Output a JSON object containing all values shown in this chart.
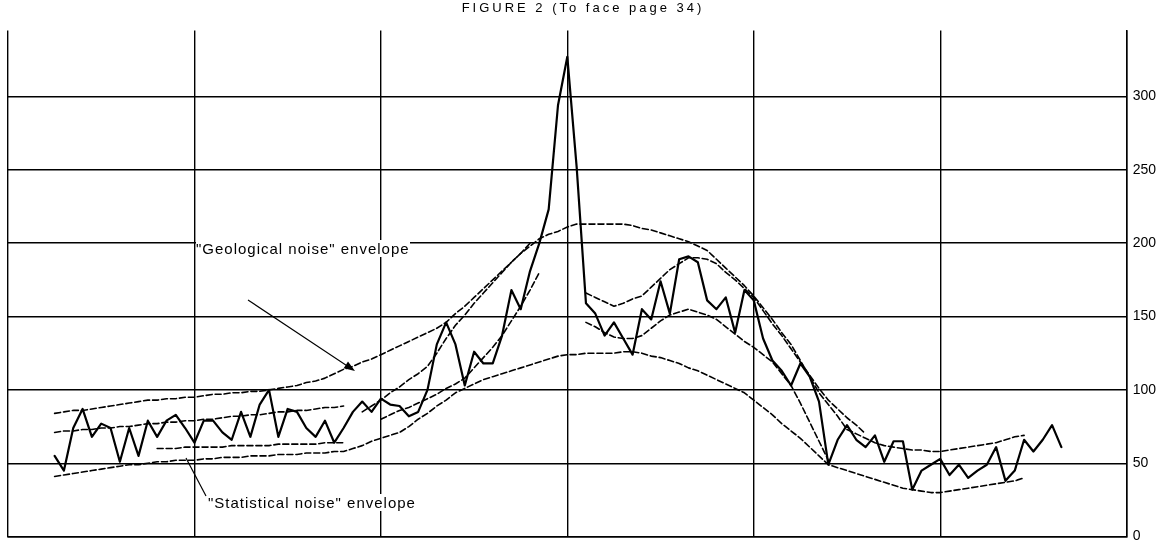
{
  "chart_data": {
    "type": "line",
    "title": "FIGURE 2 (To face page 34)",
    "annotations": [
      "\"Geological noise\" envelope",
      "\"Statistical noise\" envelope"
    ],
    "categories": [
      null,
      null,
      null,
      null,
      null,
      null,
      null,
      null,
      null,
      null,
      null,
      null,
      null,
      null,
      null,
      null,
      null,
      null,
      null,
      null,
      null,
      null,
      null,
      null,
      null,
      null,
      null,
      null,
      null,
      null,
      null,
      null,
      null,
      null,
      null,
      null,
      null,
      null,
      null,
      null,
      null,
      null,
      null,
      null,
      null,
      null,
      null,
      null,
      null,
      null,
      null,
      null,
      null,
      null,
      null,
      null,
      null,
      null,
      null,
      null,
      null,
      null,
      null,
      null,
      null,
      null,
      null,
      null,
      null,
      null,
      null,
      null,
      null,
      null,
      null,
      null,
      null,
      null,
      null,
      null,
      null,
      null,
      null,
      null,
      null,
      null,
      null,
      null,
      null,
      null,
      null,
      null,
      null,
      null,
      null,
      null,
      null,
      null,
      null,
      null,
      null,
      null,
      null,
      null,
      null,
      null,
      null,
      null,
      null,
      null,
      null,
      null,
      null,
      null,
      null,
      null,
      null,
      null,
      null,
      null,
      null
    ],
    "ylim": [
      0,
      345
    ],
    "yticks": [
      0,
      50,
      100,
      150,
      200,
      250,
      300
    ],
    "grid": true,
    "legend": false,
    "marker": "none",
    "tick_labels": "y",
    "series": [
      {
        "color": "#000000",
        "line_style": "solid",
        "values": [
          null,
          null,
          null,
          null,
          null,
          55,
          45,
          74,
          87,
          68,
          77,
          74,
          51,
          74,
          55,
          79,
          68,
          79,
          83,
          74,
          64,
          79,
          79,
          71,
          66,
          85,
          68,
          90,
          100,
          68,
          87,
          85,
          74,
          68,
          79,
          64,
          74,
          85,
          92,
          85,
          94,
          90,
          89,
          82,
          85,
          100,
          131,
          146,
          131,
          103,
          126,
          118,
          118,
          137,
          168,
          155,
          181,
          200,
          223,
          294,
          327,
          252,
          159,
          152,
          137,
          146,
          135,
          124,
          155,
          148,
          174,
          152,
          189,
          191,
          187,
          161,
          155,
          163,
          139,
          168,
          161,
          135,
          120,
          113,
          103,
          118,
          109,
          92,
          49,
          66,
          76,
          66,
          61,
          69,
          51,
          65,
          65,
          32,
          45,
          49,
          53,
          42,
          49,
          40,
          45,
          49,
          61,
          38,
          45,
          66,
          58,
          66,
          76,
          61,
          null,
          null,
          null,
          null,
          null,
          null,
          null
        ]
      },
      {
        "color": "#000000",
        "line_style": "dashed",
        "values": [
          null,
          null,
          null,
          null,
          null,
          84,
          85,
          86,
          86,
          87,
          88,
          89,
          90,
          91,
          92,
          93,
          93,
          94,
          94,
          95,
          95,
          96,
          97,
          97,
          98,
          98,
          99,
          99,
          100,
          101,
          102,
          103,
          105,
          106,
          108,
          111,
          114,
          116,
          119,
          121,
          124,
          127,
          130,
          133,
          136,
          139,
          142,
          146,
          152,
          157,
          163,
          169,
          175,
          181,
          187,
          193,
          198,
          203,
          206,
          208,
          211,
          213,
          213,
          213,
          213,
          213,
          213,
          212,
          210,
          209,
          207,
          205,
          203,
          201,
          198,
          195,
          189,
          183,
          177,
          171,
          164,
          156,
          148,
          139,
          131,
          120,
          109,
          98,
          90,
          82,
          73,
          70,
          67,
          64,
          62,
          61,
          60,
          59,
          59,
          58,
          58,
          59,
          60,
          61,
          62,
          63,
          64,
          66,
          68,
          69,
          null,
          null,
          null,
          null,
          null,
          null,
          null,
          null,
          null,
          null,
          null
        ]
      },
      {
        "color": "#000000",
        "line_style": "dashed",
        "values": [
          null,
          null,
          null,
          null,
          null,
          41,
          42,
          43,
          44,
          45,
          46,
          47,
          48,
          49,
          49,
          50,
          51,
          51,
          52,
          52,
          52,
          53,
          53,
          54,
          54,
          54,
          55,
          55,
          55,
          56,
          56,
          56,
          57,
          57,
          57,
          58,
          58,
          60,
          62,
          65,
          67,
          69,
          71,
          75,
          80,
          84,
          89,
          93,
          98,
          101,
          104,
          107,
          109,
          111,
          113,
          115,
          117,
          119,
          121,
          123,
          124,
          124,
          125,
          125,
          125,
          125,
          126,
          126,
          125,
          123,
          122,
          120,
          118,
          115,
          113,
          110,
          107,
          104,
          101,
          98,
          93,
          88,
          83,
          77,
          72,
          67,
          61,
          55,
          49,
          47,
          45,
          43,
          41,
          39,
          37,
          35,
          33,
          32,
          31,
          30,
          30,
          31,
          32,
          33,
          34,
          35,
          36,
          37,
          38,
          40,
          null,
          null,
          null,
          null,
          null,
          null,
          null,
          null,
          null,
          null,
          null
        ]
      },
      {
        "color": "#000000",
        "line_style": "dashed",
        "values": [
          null,
          null,
          null,
          null,
          null,
          71,
          72,
          72,
          73,
          73,
          74,
          74,
          75,
          75,
          76,
          77,
          77,
          78,
          78,
          79,
          79,
          80,
          80,
          81,
          82,
          82,
          83,
          83,
          84,
          85,
          85,
          86,
          86,
          87,
          88,
          88,
          89,
          null,
          null,
          null,
          null,
          null,
          null,
          null,
          null,
          null,
          null,
          null,
          null,
          null,
          null,
          null,
          null,
          null,
          null,
          null,
          null,
          null,
          null,
          null,
          null,
          null,
          null,
          null,
          null,
          null,
          null,
          null,
          null,
          null,
          null,
          null,
          null,
          null,
          null,
          null,
          null,
          null,
          null,
          null,
          null,
          null,
          null,
          null,
          null,
          null,
          null,
          null,
          null,
          null,
          null,
          null,
          null,
          null,
          null,
          null,
          null,
          null,
          null,
          null,
          null,
          null,
          null,
          null,
          null,
          null,
          null,
          null,
          null,
          null,
          null,
          null,
          null,
          null,
          null,
          null,
          null,
          null,
          null,
          null,
          null
        ]
      },
      {
        "color": "#000000",
        "line_style": "dashed",
        "values": [
          null,
          null,
          null,
          null,
          null,
          null,
          null,
          null,
          null,
          null,
          null,
          null,
          null,
          null,
          null,
          null,
          60,
          60,
          60,
          61,
          61,
          61,
          61,
          61,
          62,
          62,
          62,
          62,
          62,
          63,
          63,
          63,
          63,
          63,
          64,
          64,
          64,
          null,
          null,
          null,
          null,
          null,
          null,
          null,
          null,
          null,
          null,
          null,
          null,
          null,
          null,
          null,
          null,
          null,
          null,
          null,
          null,
          null,
          null,
          null,
          null,
          null,
          null,
          null,
          null,
          null,
          null,
          null,
          null,
          null,
          null,
          null,
          null,
          null,
          null,
          null,
          null,
          null,
          null,
          null,
          null,
          null,
          null,
          null,
          null,
          null,
          null,
          null,
          null,
          null,
          null,
          null,
          null,
          null,
          null,
          null,
          null,
          null,
          null,
          null,
          null,
          null,
          null,
          null,
          null,
          null,
          null,
          null,
          null,
          null,
          null,
          null,
          null,
          null,
          null,
          null,
          null,
          null,
          null,
          null,
          null
        ]
      },
      {
        "color": "#000000",
        "line_style": "dashed",
        "values": [
          null,
          null,
          null,
          null,
          null,
          null,
          null,
          null,
          null,
          null,
          null,
          null,
          null,
          null,
          null,
          null,
          null,
          null,
          null,
          null,
          null,
          null,
          null,
          null,
          null,
          null,
          null,
          null,
          null,
          null,
          null,
          null,
          null,
          null,
          null,
          null,
          null,
          null,
          85,
          89,
          93,
          98,
          102,
          107,
          111,
          116,
          125,
          135,
          144,
          151,
          159,
          166,
          173,
          180,
          187,
          193,
          200,
          null,
          null,
          null,
          null,
          null,
          null,
          null,
          null,
          null,
          null,
          null,
          null,
          null,
          null,
          null,
          null,
          null,
          null,
          null,
          null,
          null,
          null,
          null,
          null,
          null,
          null,
          null,
          null,
          null,
          null,
          null,
          null,
          null,
          null,
          null,
          null,
          null,
          null,
          null,
          null,
          null,
          null,
          null,
          null,
          null,
          null,
          null,
          null,
          null,
          null,
          null,
          null,
          null,
          null,
          null,
          null,
          null,
          null,
          null,
          null,
          null,
          null,
          null,
          null
        ]
      },
      {
        "color": "#000000",
        "line_style": "dashed",
        "values": [
          null,
          null,
          null,
          null,
          null,
          null,
          null,
          null,
          null,
          null,
          null,
          null,
          null,
          null,
          null,
          null,
          null,
          null,
          null,
          null,
          null,
          null,
          null,
          null,
          null,
          null,
          null,
          null,
          null,
          null,
          null,
          null,
          null,
          null,
          null,
          null,
          null,
          null,
          null,
          null,
          80,
          83,
          86,
          88,
          91,
          94,
          97,
          101,
          104,
          108,
          115,
          122,
          129,
          137,
          147,
          157,
          168,
          180,
          null,
          null,
          null,
          null,
          null,
          null,
          null,
          null,
          null,
          null,
          null,
          null,
          null,
          null,
          null,
          null,
          null,
          null,
          null,
          null,
          null,
          null,
          null,
          null,
          null,
          null,
          null,
          null,
          null,
          null,
          null,
          null,
          null,
          null,
          null,
          null,
          null,
          null,
          null,
          null,
          null,
          null,
          null,
          null,
          null,
          null,
          null,
          null,
          null,
          null,
          null,
          null,
          null,
          null,
          null,
          null,
          null,
          null,
          null,
          null,
          null,
          null,
          null
        ]
      },
      {
        "color": "#000000",
        "line_style": "dashed",
        "values": [
          null,
          null,
          null,
          null,
          null,
          null,
          null,
          null,
          null,
          null,
          null,
          null,
          null,
          null,
          null,
          null,
          null,
          null,
          null,
          null,
          null,
          null,
          null,
          null,
          null,
          null,
          null,
          null,
          null,
          null,
          null,
          null,
          null,
          null,
          null,
          null,
          null,
          null,
          null,
          null,
          null,
          null,
          null,
          null,
          null,
          null,
          null,
          null,
          null,
          null,
          null,
          null,
          null,
          null,
          null,
          null,
          null,
          null,
          null,
          null,
          null,
          null,
          166,
          163,
          160,
          157,
          159,
          162,
          164,
          170,
          176,
          182,
          186,
          190,
          190,
          189,
          186,
          180,
          175,
          169,
          163,
          154,
          145,
          137,
          128,
          119,
          110,
          101,
          93,
          87,
          81,
          76,
          70,
          null,
          null,
          null,
          null,
          null,
          null,
          null,
          null,
          null,
          null,
          null,
          null,
          null,
          null,
          null,
          null,
          null,
          null,
          null,
          null,
          null,
          null,
          null,
          null,
          null,
          null,
          null,
          null
        ]
      },
      {
        "color": "#000000",
        "line_style": "dashed",
        "values": [
          null,
          null,
          null,
          null,
          null,
          null,
          null,
          null,
          null,
          null,
          null,
          null,
          null,
          null,
          null,
          null,
          null,
          null,
          null,
          null,
          null,
          null,
          null,
          null,
          null,
          null,
          null,
          null,
          null,
          null,
          null,
          null,
          null,
          null,
          null,
          null,
          null,
          null,
          null,
          null,
          null,
          null,
          null,
          null,
          null,
          null,
          null,
          null,
          null,
          null,
          null,
          null,
          null,
          null,
          null,
          null,
          null,
          null,
          null,
          null,
          null,
          null,
          146,
          143,
          139,
          136,
          135,
          135,
          137,
          142,
          147,
          151,
          153,
          155,
          153,
          151,
          148,
          143,
          138,
          133,
          129,
          124,
          119,
          111,
          103,
          91,
          78,
          65,
          52,
          null,
          null,
          null,
          null,
          null,
          null,
          null,
          null,
          null,
          null,
          null,
          null,
          null,
          null,
          null,
          null,
          null,
          null,
          null,
          null,
          null,
          null,
          null,
          null,
          null,
          null,
          null,
          null,
          null,
          null,
          null,
          null
        ]
      }
    ]
  }
}
